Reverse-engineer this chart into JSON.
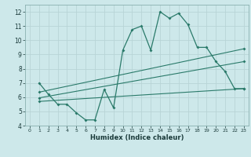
{
  "xlabel": "Humidex (Indice chaleur)",
  "bg_color": "#cde8ea",
  "grid_color": "#b8d4d6",
  "line_color": "#2a7a6a",
  "xlim": [
    -0.5,
    23.5
  ],
  "ylim": [
    4,
    12.5
  ],
  "xticks": [
    0,
    1,
    2,
    3,
    4,
    5,
    6,
    7,
    8,
    9,
    10,
    11,
    12,
    13,
    14,
    15,
    16,
    17,
    18,
    19,
    20,
    21,
    22,
    23
  ],
  "yticks": [
    4,
    5,
    6,
    7,
    8,
    9,
    10,
    11,
    12
  ],
  "curve1_x": [
    1,
    2,
    3,
    4,
    5,
    6,
    7,
    8,
    9,
    10,
    11,
    12,
    13,
    14,
    15,
    16,
    17,
    18,
    19,
    20,
    21,
    22,
    23
  ],
  "curve1_y": [
    7.0,
    6.2,
    5.5,
    5.5,
    4.9,
    4.4,
    4.4,
    6.55,
    5.25,
    9.3,
    10.75,
    11.0,
    9.3,
    12.0,
    11.55,
    11.9,
    11.1,
    9.5,
    9.5,
    8.5,
    7.8,
    6.6,
    6.6
  ],
  "line2_x": [
    1,
    23
  ],
  "line2_y": [
    6.35,
    9.4
  ],
  "line3_x": [
    1,
    23
  ],
  "line3_y": [
    5.95,
    8.5
  ],
  "line4_x": [
    1,
    23
  ],
  "line4_y": [
    5.7,
    6.6
  ]
}
